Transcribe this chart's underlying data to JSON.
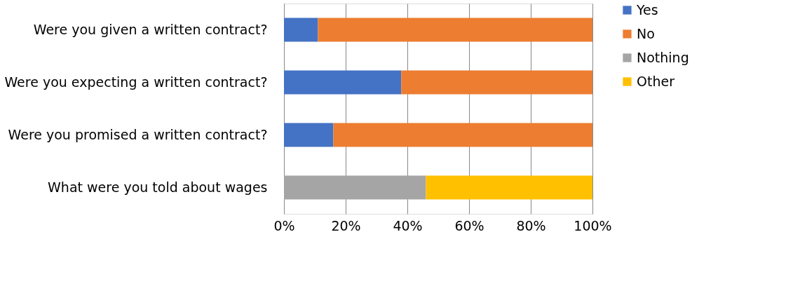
{
  "chart_data": {
    "type": "bar",
    "orientation": "horizontal",
    "stacked": true,
    "categories": [
      "Were you given a written contract?",
      "Were you expecting a written contract?",
      "Were you promised a written contract?",
      "What were you told about wages"
    ],
    "series": [
      {
        "name": "Yes",
        "color": "#4472c4",
        "values": [
          11,
          38,
          16,
          null
        ]
      },
      {
        "name": "No",
        "color": "#ed7d31",
        "values": [
          89,
          62,
          84,
          null
        ]
      },
      {
        "name": "Nothing",
        "color": "#a5a5a5",
        "values": [
          null,
          null,
          null,
          46
        ]
      },
      {
        "name": "Other",
        "color": "#ffc000",
        "values": [
          null,
          null,
          null,
          54
        ]
      }
    ],
    "xlim": [
      0,
      100
    ],
    "xticks": [
      {
        "value": 0,
        "label": "0%"
      },
      {
        "value": 20,
        "label": "20%"
      },
      {
        "value": 40,
        "label": "40%"
      },
      {
        "value": 60,
        "label": "60%"
      },
      {
        "value": 80,
        "label": "80%"
      },
      {
        "value": 100,
        "label": "100%"
      }
    ],
    "grid": "x",
    "legend": "right"
  }
}
